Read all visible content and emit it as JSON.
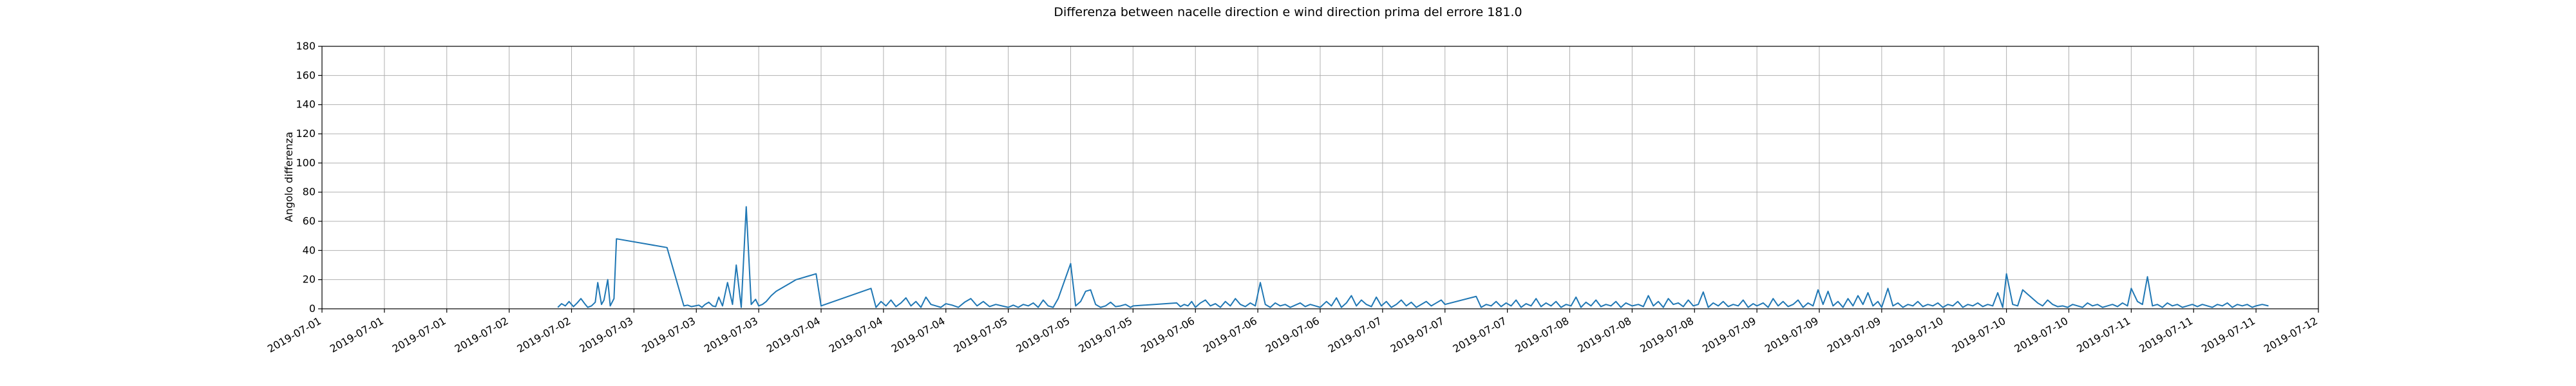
{
  "chart_data": {
    "type": "line",
    "title": "Differenza between nacelle direction e wind direction prima del errore 181.0",
    "xlabel": "",
    "ylabel": "Angolo differenza",
    "ylim": [
      0,
      180
    ],
    "y_ticks": [
      0,
      20,
      40,
      60,
      80,
      100,
      120,
      140,
      160,
      180
    ],
    "grid": true,
    "x_tick_labels": [
      "2019-07-01",
      "2019-07-01",
      "2019-07-01",
      "2019-07-02",
      "2019-07-02",
      "2019-07-03",
      "2019-07-03",
      "2019-07-03",
      "2019-07-04",
      "2019-07-04",
      "2019-07-04",
      "2019-07-05",
      "2019-07-05",
      "2019-07-05",
      "2019-07-06",
      "2019-07-06",
      "2019-07-06",
      "2019-07-07",
      "2019-07-07",
      "2019-07-07",
      "2019-07-08",
      "2019-07-08",
      "2019-07-08",
      "2019-07-09",
      "2019-07-09",
      "2019-07-09",
      "2019-07-10",
      "2019-07-10",
      "2019-07-10",
      "2019-07-11",
      "2019-07-11",
      "2019-07-11",
      "2019-07-12"
    ],
    "series": [
      {
        "name": "",
        "color": "#1f77b4",
        "x": [
          3.78,
          3.84,
          3.9,
          3.96,
          4.03,
          4.09,
          4.15,
          4.22,
          4.26,
          4.32,
          4.38,
          4.42,
          4.48,
          4.52,
          4.58,
          4.62,
          4.68,
          4.72,
          5.53,
          5.8,
          5.86,
          5.92,
          5.98,
          6.04,
          6.09,
          6.14,
          6.2,
          6.26,
          6.31,
          6.36,
          6.42,
          6.5,
          6.58,
          6.64,
          6.72,
          6.8,
          6.88,
          6.95,
          7.0,
          7.06,
          7.12,
          7.2,
          7.28,
          7.36,
          7.44,
          7.52,
          7.6,
          7.68,
          7.76,
          7.84,
          7.92,
          8.0,
          8.8,
          8.88,
          8.96,
          9.04,
          9.12,
          9.2,
          9.28,
          9.36,
          9.44,
          9.52,
          9.6,
          9.68,
          9.76,
          9.84,
          9.92,
          10.0,
          10.1,
          10.2,
          10.3,
          10.4,
          10.5,
          10.6,
          10.7,
          10.8,
          10.9,
          11.0,
          11.08,
          11.16,
          11.24,
          11.32,
          11.4,
          11.48,
          11.56,
          11.64,
          11.72,
          11.8,
          12.0,
          12.08,
          12.16,
          12.24,
          12.32,
          12.4,
          12.48,
          12.56,
          12.64,
          12.72,
          12.8,
          12.88,
          12.96,
          13.0,
          13.7,
          13.76,
          13.82,
          13.88,
          13.94,
          14.0,
          14.08,
          14.16,
          14.24,
          14.32,
          14.4,
          14.48,
          14.56,
          14.64,
          14.72,
          14.8,
          14.88,
          14.96,
          15.04,
          15.12,
          15.2,
          15.28,
          15.36,
          15.44,
          15.52,
          15.6,
          15.68,
          15.76,
          15.84,
          15.92,
          16.0,
          16.1,
          16.18,
          16.26,
          16.34,
          16.42,
          16.5,
          16.58,
          16.66,
          16.74,
          16.82,
          16.9,
          16.98,
          17.06,
          17.14,
          17.22,
          17.3,
          17.38,
          17.46,
          17.54,
          17.62,
          17.7,
          17.78,
          17.86,
          17.94,
          18.0,
          18.5,
          18.58,
          18.66,
          18.74,
          18.82,
          18.9,
          18.98,
          19.06,
          19.14,
          19.22,
          19.3,
          19.38,
          19.46,
          19.54,
          19.62,
          19.7,
          19.78,
          19.86,
          19.94,
          20.02,
          20.1,
          20.18,
          20.26,
          20.34,
          20.42,
          20.5,
          20.58,
          20.66,
          20.74,
          20.82,
          20.9,
          21.0,
          21.1,
          21.18,
          21.26,
          21.34,
          21.42,
          21.5,
          21.58,
          21.66,
          21.74,
          21.82,
          21.9,
          21.98,
          22.06,
          22.14,
          22.22,
          22.3,
          22.38,
          22.46,
          22.54,
          22.62,
          22.7,
          22.78,
          22.86,
          22.94,
          23.0,
          23.1,
          23.18,
          23.26,
          23.34,
          23.42,
          23.5,
          23.58,
          23.66,
          23.74,
          23.82,
          23.9,
          23.98,
          24.06,
          24.14,
          24.22,
          24.3,
          24.38,
          24.46,
          24.54,
          24.62,
          24.7,
          24.78,
          24.86,
          24.94,
          25.0,
          25.1,
          25.18,
          25.26,
          25.34,
          25.42,
          25.5,
          25.58,
          25.66,
          25.74,
          25.82,
          25.9,
          25.98,
          26.06,
          26.14,
          26.22,
          26.3,
          26.38,
          26.46,
          26.54,
          26.62,
          26.7,
          26.78,
          26.86,
          26.94,
          27.0,
          27.1,
          27.18,
          27.26,
          27.34,
          27.42,
          27.5,
          27.58,
          27.66,
          27.74,
          27.82,
          27.9,
          27.98,
          28.06,
          28.14,
          28.22,
          28.3,
          28.38,
          28.46,
          28.54,
          28.62,
          28.7,
          28.78,
          28.86,
          28.94,
          29.0,
          29.1,
          29.18,
          29.26,
          29.34,
          29.42,
          29.5,
          29.58,
          29.66,
          29.74,
          29.82,
          29.9,
          29.98,
          30.06,
          30.14,
          30.22,
          30.3,
          30.38,
          30.46,
          30.54,
          30.62,
          30.7,
          30.78,
          30.86,
          30.94,
          31.0,
          31.1,
          31.2
        ],
        "y": [
          1.0,
          3.5,
          2.0,
          5.0,
          1.5,
          4.0,
          7.0,
          3.0,
          1.0,
          2.0,
          4.5,
          18.0,
          3.0,
          6.0,
          20.0,
          2.0,
          7.0,
          48.0,
          42.0,
          2.0,
          2.5,
          1.5,
          2.0,
          2.5,
          1.0,
          3.0,
          4.5,
          2.0,
          1.5,
          8.0,
          2.0,
          18.0,
          3.0,
          30.0,
          1.0,
          70.0,
          3.0,
          6.5,
          2.0,
          3.0,
          5.0,
          9.0,
          12.0,
          14.0,
          16.0,
          18.0,
          20.0,
          21.0,
          22.0,
          23.0,
          24.0,
          2.0,
          14.0,
          1.0,
          5.0,
          2.0,
          6.0,
          1.5,
          4.0,
          7.5,
          2.0,
          5.0,
          1.0,
          8.0,
          3.0,
          2.0,
          1.0,
          3.5,
          2.5,
          1.0,
          4.5,
          7.0,
          2.0,
          5.0,
          1.5,
          3.0,
          2.0,
          1.0,
          2.5,
          1.0,
          3.0,
          2.0,
          4.0,
          1.0,
          6.0,
          2.0,
          1.0,
          7.0,
          31.0,
          2.0,
          5.0,
          12.0,
          13.0,
          3.0,
          1.0,
          2.0,
          4.5,
          1.5,
          2.0,
          3.0,
          1.0,
          2.0,
          4.0,
          1.5,
          3.0,
          2.0,
          5.0,
          1.0,
          4.0,
          6.0,
          2.0,
          3.5,
          1.0,
          5.0,
          2.0,
          7.0,
          3.0,
          1.5,
          4.0,
          2.0,
          18.0,
          3.0,
          1.0,
          4.0,
          2.0,
          3.0,
          1.0,
          2.5,
          4.0,
          1.5,
          3.0,
          2.0,
          1.0,
          5.0,
          2.0,
          7.5,
          1.0,
          4.0,
          9.0,
          2.0,
          6.0,
          3.0,
          1.5,
          8.0,
          2.0,
          5.0,
          1.0,
          3.0,
          6.0,
          2.0,
          4.5,
          1.0,
          3.0,
          5.0,
          2.0,
          4.0,
          6.0,
          3.0,
          8.5,
          1.0,
          3.0,
          2.0,
          5.0,
          1.5,
          4.0,
          2.0,
          6.0,
          1.0,
          3.5,
          2.0,
          7.0,
          1.5,
          4.0,
          2.0,
          5.0,
          1.0,
          3.0,
          2.0,
          8.0,
          1.0,
          4.5,
          2.0,
          6.0,
          1.5,
          3.0,
          2.0,
          5.0,
          1.0,
          4.0,
          2.0,
          3.0,
          1.5,
          9.0,
          2.0,
          5.0,
          1.0,
          7.0,
          3.0,
          4.0,
          1.5,
          6.0,
          2.0,
          3.0,
          11.5,
          1.0,
          4.0,
          2.0,
          5.0,
          1.5,
          3.0,
          2.0,
          6.0,
          1.0,
          3.5,
          2.0,
          4.0,
          1.0,
          7.0,
          2.0,
          5.0,
          1.5,
          3.0,
          6.0,
          1.0,
          4.0,
          2.0,
          13.0,
          3.0,
          12.0,
          2.0,
          5.0,
          1.0,
          7.0,
          2.0,
          9.0,
          3.0,
          11.0,
          2.0,
          5.0,
          1.0,
          14.0,
          2.0,
          4.0,
          1.0,
          3.0,
          2.0,
          5.0,
          1.5,
          3.0,
          2.0,
          4.0,
          1.0,
          3.0,
          2.0,
          5.0,
          1.0,
          3.0,
          2.0,
          4.0,
          1.5,
          3.0,
          2.0,
          11.0,
          1.0,
          24.0,
          3.0,
          2.0,
          13.0,
          10.0,
          7.0,
          4.0,
          2.0,
          6.0,
          3.0,
          1.5,
          2.0,
          1.0,
          3.0,
          2.0,
          1.0,
          4.0,
          2.0,
          3.0,
          1.0,
          2.0,
          3.0,
          1.5,
          4.0,
          2.0,
          14.0,
          5.0,
          3.0,
          22.0,
          2.0,
          3.0,
          1.0,
          4.0,
          2.0,
          3.0,
          1.0,
          2.0,
          3.0,
          1.5,
          3.0,
          2.0,
          1.0,
          3.0,
          2.0,
          4.0,
          1.0,
          3.0,
          2.0,
          3.0,
          1.0,
          2.0,
          3.0,
          2.0
        ]
      }
    ]
  }
}
